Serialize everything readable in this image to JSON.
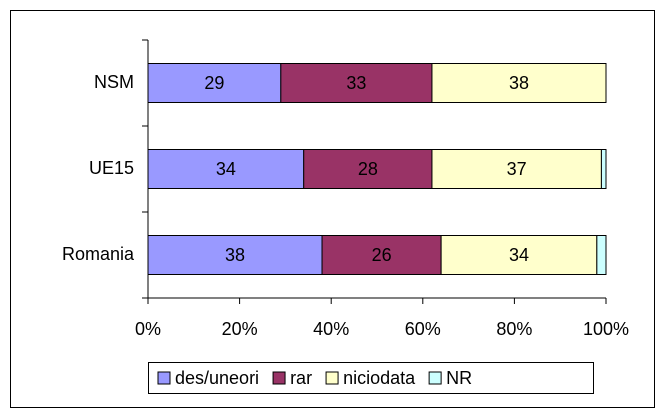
{
  "chart_data": {
    "type": "stacked-bar-horizontal",
    "categories": [
      "NSM",
      "UE15",
      "Romania"
    ],
    "series": [
      {
        "name": "des/uneori",
        "color": "#9999ff",
        "values": [
          29,
          34,
          38
        ],
        "data_labels": true
      },
      {
        "name": "rar",
        "color": "#993366",
        "values": [
          33,
          28,
          26
        ],
        "data_labels": true
      },
      {
        "name": "niciodata",
        "color": "#ffffcc",
        "values": [
          38,
          37,
          34
        ],
        "data_labels": true
      },
      {
        "name": "NR",
        "color": "#ccffff",
        "values": [
          0,
          1,
          2
        ],
        "data_labels": false
      }
    ],
    "xlim": [
      0,
      100
    ],
    "xticks": [
      {
        "value": 0,
        "label": "0%"
      },
      {
        "value": 20,
        "label": "20%"
      },
      {
        "value": 40,
        "label": "40%"
      },
      {
        "value": 60,
        "label": "60%"
      },
      {
        "value": 80,
        "label": "80%"
      },
      {
        "value": 100,
        "label": "100%"
      }
    ],
    "legend": "bottom",
    "grid": false
  }
}
